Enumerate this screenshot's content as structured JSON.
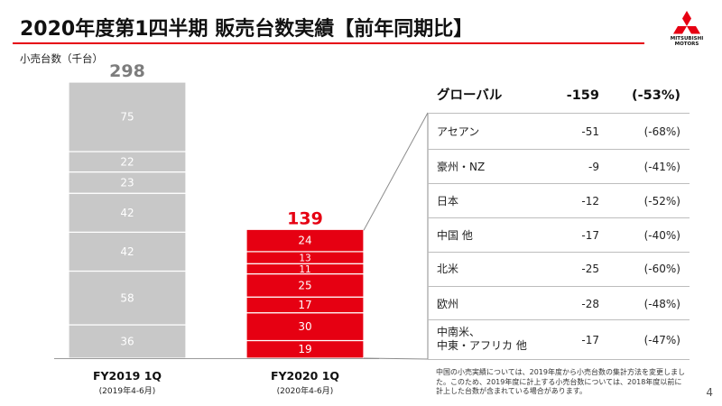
{
  "header": {
    "title": "2020年度第1四半期 販売台数実績【前年同期比】",
    "logo_line1": "MITSUBISHI",
    "logo_line2": "MOTORS"
  },
  "chart_data": {
    "type": "bar",
    "stacked": true,
    "unit_label": "小売台数（千台）",
    "categories": [
      "FY2019 1Q",
      "FY2020 1Q"
    ],
    "category_subtitles": [
      "(2019年4-6月)",
      "(2020年4-6月)"
    ],
    "totals": [
      298,
      139
    ],
    "series": [
      {
        "values": [
          36,
          19
        ]
      },
      {
        "values": [
          58,
          30
        ]
      },
      {
        "values": [
          42,
          17
        ]
      },
      {
        "values": [
          42,
          25
        ]
      },
      {
        "values": [
          23,
          11
        ]
      },
      {
        "values": [
          22,
          13
        ]
      },
      {
        "values": [
          75,
          24
        ]
      }
    ],
    "colors": [
      "#c8c8c8",
      "#e60012"
    ],
    "total_label_colors": [
      "#7d7d7d",
      "#e60012"
    ],
    "ylim": [
      0,
      298
    ]
  },
  "breakdown": {
    "header": {
      "name": "グローバル",
      "diff": "-159",
      "pct": "(-53%)"
    },
    "rows": [
      {
        "name": "アセアン",
        "diff": "-51",
        "pct": "(-68%)"
      },
      {
        "name": "豪州・NZ",
        "diff": "-9",
        "pct": "(-41%)"
      },
      {
        "name": "日本",
        "diff": "-12",
        "pct": "(-52%)"
      },
      {
        "name": "中国 他",
        "diff": "-17",
        "pct": "(-40%)"
      },
      {
        "name": "北米",
        "diff": "-25",
        "pct": "(-60%)"
      },
      {
        "name": "欧州",
        "diff": "-28",
        "pct": "(-48%)"
      },
      {
        "name": "中南米、",
        "name2": "中東・アフリカ 他",
        "diff": "-17",
        "pct": "(-47%)"
      }
    ]
  },
  "footnote": [
    "中国の小売実績については、2019年度から小売台数の集計方法を変更しまし",
    "た。このため、2019年度に計上する小売台数については、2018年度以前に",
    "計上した台数が含まれている場合があります。"
  ],
  "page_number": "4"
}
